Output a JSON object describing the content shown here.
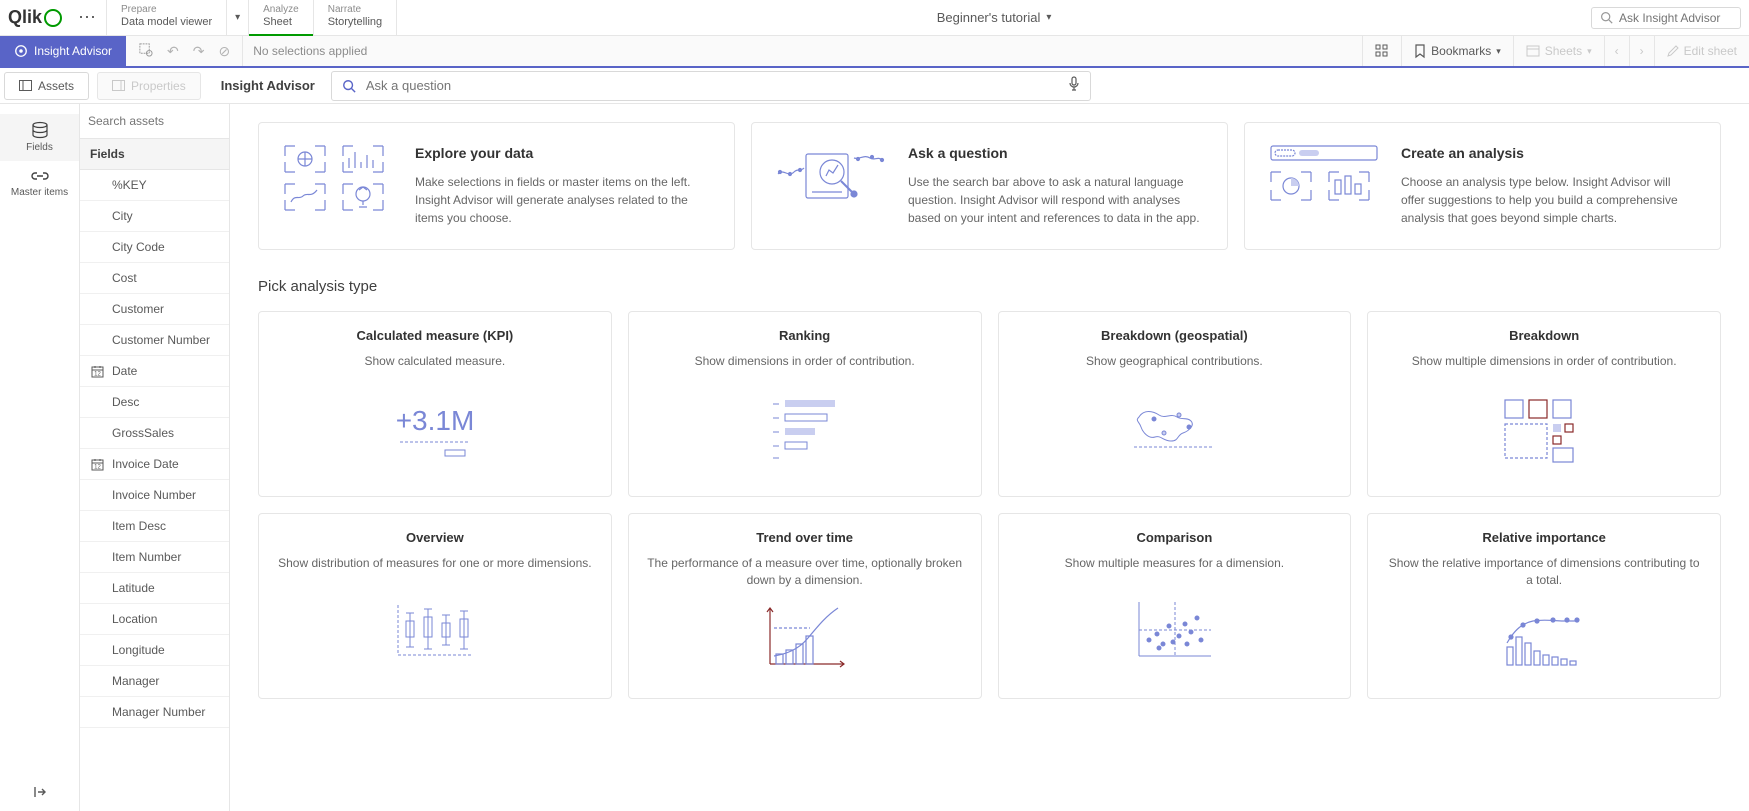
{
  "brand": "Qlik",
  "top_tabs": [
    {
      "caption": "Prepare",
      "label": "Data model viewer"
    },
    {
      "caption": "Analyze",
      "label": "Sheet"
    },
    {
      "caption": "Narrate",
      "label": "Storytelling"
    }
  ],
  "active_tab_index": 1,
  "app_title": "Beginner's tutorial",
  "top_search_placeholder": "Ask Insight Advisor",
  "insight_advisor_btn": "Insight Advisor",
  "selections_msg": "No selections applied",
  "bookmarks_label": "Bookmarks",
  "sheets_label": "Sheets",
  "edit_sheet_label": "Edit sheet",
  "panel": {
    "assets_btn": "Assets",
    "properties_btn": "Properties",
    "title": "Insight Advisor",
    "question_placeholder": "Ask a question"
  },
  "left_rail": {
    "fields": "Fields",
    "master": "Master items"
  },
  "asset_panel": {
    "search_placeholder": "Search assets",
    "section_header": "Fields",
    "fields": [
      {
        "label": "%KEY",
        "icon": ""
      },
      {
        "label": "City",
        "icon": ""
      },
      {
        "label": "City Code",
        "icon": ""
      },
      {
        "label": "Cost",
        "icon": ""
      },
      {
        "label": "Customer",
        "icon": ""
      },
      {
        "label": "Customer Number",
        "icon": ""
      },
      {
        "label": "Date",
        "icon": "calendar"
      },
      {
        "label": "Desc",
        "icon": ""
      },
      {
        "label": "GrossSales",
        "icon": ""
      },
      {
        "label": "Invoice Date",
        "icon": "calendar"
      },
      {
        "label": "Invoice Number",
        "icon": ""
      },
      {
        "label": "Item Desc",
        "icon": ""
      },
      {
        "label": "Item Number",
        "icon": ""
      },
      {
        "label": "Latitude",
        "icon": ""
      },
      {
        "label": "Location",
        "icon": ""
      },
      {
        "label": "Longitude",
        "icon": ""
      },
      {
        "label": "Manager",
        "icon": ""
      },
      {
        "label": "Manager Number",
        "icon": ""
      }
    ]
  },
  "intro_cards": [
    {
      "title": "Explore your data",
      "text": "Make selections in fields or master items on the left. Insight Advisor will generate analyses related to the items you choose."
    },
    {
      "title": "Ask a question",
      "text": "Use the search bar above to ask a natural language question. Insight Advisor will respond with analyses based on your intent and references to data in the app."
    },
    {
      "title": "Create an analysis",
      "text": "Choose an analysis type below. Insight Advisor will offer suggestions to help you build a comprehensive analysis that goes beyond simple charts."
    }
  ],
  "section_title": "Pick analysis type",
  "analysis_types": [
    {
      "title": "Calculated measure (KPI)",
      "desc": "Show calculated measure."
    },
    {
      "title": "Ranking",
      "desc": "Show dimensions in order of contribution."
    },
    {
      "title": "Breakdown (geospatial)",
      "desc": "Show geographical contributions."
    },
    {
      "title": "Breakdown",
      "desc": "Show multiple dimensions in order of contribution."
    },
    {
      "title": "Overview",
      "desc": "Show distribution of measures for one or more dimensions."
    },
    {
      "title": "Trend over time",
      "desc": "The performance of a measure over time, optionally broken down by a dimension."
    },
    {
      "title": "Comparison",
      "desc": "Show multiple measures for a dimension."
    },
    {
      "title": "Relative importance",
      "desc": "Show the relative importance of dimensions contributing to a total."
    }
  ],
  "colors": {
    "accent": "#5964c7",
    "brand_green": "#009a00",
    "illus_stroke": "#7a87d6",
    "illus_dark": "#8a2a2a"
  }
}
